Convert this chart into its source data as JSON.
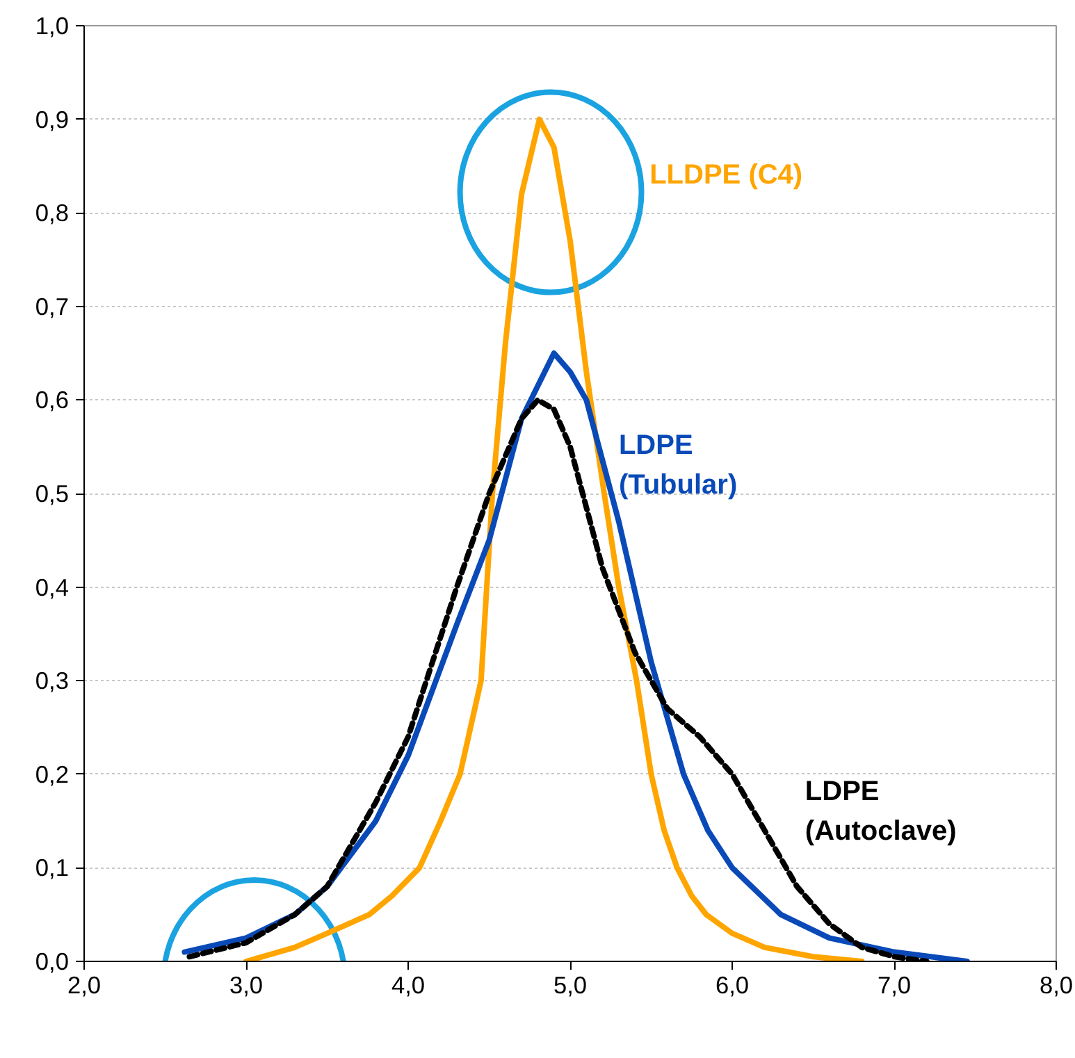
{
  "chart_data": {
    "type": "line",
    "xlim": [
      2.0,
      8.0
    ],
    "ylim": [
      0.0,
      1.0
    ],
    "xticks": [
      {
        "value": 2,
        "label": "2,0"
      },
      {
        "value": 3,
        "label": "3,0"
      },
      {
        "value": 4,
        "label": "4,0"
      },
      {
        "value": 5,
        "label": "5,0"
      },
      {
        "value": 6,
        "label": "6,0"
      },
      {
        "value": 7,
        "label": "7,0"
      },
      {
        "value": 8,
        "label": "8,0"
      }
    ],
    "yticks": [
      {
        "value": 0,
        "label": "0,0"
      },
      {
        "value": 0.1,
        "label": "0,1"
      },
      {
        "value": 0.2,
        "label": "0,2"
      },
      {
        "value": 0.3,
        "label": "0,3"
      },
      {
        "value": 0.4,
        "label": "0,4"
      },
      {
        "value": 0.5,
        "label": "0,5"
      },
      {
        "value": 0.6,
        "label": "0,6"
      },
      {
        "value": 0.7,
        "label": "0,7"
      },
      {
        "value": 0.8,
        "label": "0,8"
      },
      {
        "value": 0.9,
        "label": "0,9"
      },
      {
        "value": 1.0,
        "label": "1,0"
      }
    ],
    "grid": "y",
    "marker": "none",
    "series": [
      {
        "name": "LLDPE (C4)",
        "color": "#ffa500",
        "line_style": "solid",
        "x": [
          3.0,
          3.3,
          3.5,
          3.76,
          3.9,
          4.07,
          4.2,
          4.32,
          4.45,
          4.52,
          4.6,
          4.7,
          4.81,
          4.9,
          5.0,
          5.1,
          5.21,
          5.3,
          5.41,
          5.5,
          5.58,
          5.66,
          5.75,
          5.84,
          6.0,
          6.2,
          6.5,
          6.8
        ],
        "values": [
          0.0,
          0.015,
          0.03,
          0.05,
          0.07,
          0.1,
          0.15,
          0.2,
          0.3,
          0.5,
          0.66,
          0.82,
          0.9,
          0.87,
          0.77,
          0.63,
          0.5,
          0.4,
          0.3,
          0.2,
          0.14,
          0.1,
          0.07,
          0.05,
          0.03,
          0.015,
          0.005,
          0.0
        ]
      },
      {
        "name": "LDPE (Tubular)",
        "color": "#0a4ab8",
        "line_style": "solid",
        "x": [
          2.62,
          3.0,
          3.3,
          3.5,
          3.8,
          4.0,
          4.3,
          4.5,
          4.7,
          4.9,
          5.0,
          5.1,
          5.3,
          5.5,
          5.7,
          5.85,
          6.0,
          6.3,
          6.6,
          7.0,
          7.45
        ],
        "values": [
          0.01,
          0.025,
          0.05,
          0.08,
          0.15,
          0.22,
          0.36,
          0.45,
          0.58,
          0.65,
          0.63,
          0.6,
          0.47,
          0.32,
          0.2,
          0.14,
          0.1,
          0.05,
          0.025,
          0.01,
          0.0
        ]
      },
      {
        "name": "LDPE (Autoclave)",
        "color": "#000000",
        "line_style": "dashed",
        "x": [
          2.65,
          3.0,
          3.3,
          3.5,
          3.8,
          4.0,
          4.3,
          4.5,
          4.7,
          4.8,
          4.9,
          5.0,
          5.2,
          5.4,
          5.6,
          5.8,
          6.0,
          6.2,
          6.4,
          6.6,
          6.8,
          7.0,
          7.2
        ],
        "values": [
          0.005,
          0.02,
          0.05,
          0.08,
          0.17,
          0.24,
          0.4,
          0.5,
          0.58,
          0.6,
          0.59,
          0.55,
          0.42,
          0.33,
          0.27,
          0.24,
          0.2,
          0.14,
          0.08,
          0.04,
          0.015,
          0.005,
          0.0
        ]
      }
    ]
  }
}
